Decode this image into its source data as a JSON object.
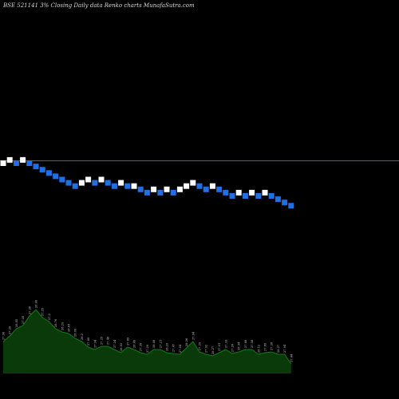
{
  "chart_data": {
    "type": "renko",
    "title": "BSE 521141 3% Closing Daily data Renko charts MunafaSutra.com",
    "brick_size_pct": 3,
    "brick_colors": {
      "up": "#ffffff",
      "down": "#1f6fe5"
    },
    "line_color": "#8a5a12",
    "volume_color": "#137c13",
    "reference_levels": [
      0,
      49.6
    ],
    "bricks": [
      {
        "level": 0,
        "dir": "up"
      },
      {
        "level": 1,
        "dir": "up"
      },
      {
        "level": 0,
        "dir": "down"
      },
      {
        "level": 1,
        "dir": "up"
      },
      {
        "level": 0,
        "dir": "down"
      },
      {
        "level": -1,
        "dir": "down"
      },
      {
        "level": -2,
        "dir": "down"
      },
      {
        "level": -3,
        "dir": "down"
      },
      {
        "level": -4,
        "dir": "down"
      },
      {
        "level": -5,
        "dir": "down"
      },
      {
        "level": -6,
        "dir": "down"
      },
      {
        "level": -7,
        "dir": "down"
      },
      {
        "level": -6,
        "dir": "up"
      },
      {
        "level": -5,
        "dir": "up"
      },
      {
        "level": -6,
        "dir": "down"
      },
      {
        "level": -5,
        "dir": "up"
      },
      {
        "level": -6,
        "dir": "down"
      },
      {
        "level": -7,
        "dir": "down"
      },
      {
        "level": -6,
        "dir": "up"
      },
      {
        "level": -7,
        "dir": "down"
      },
      {
        "level": -7,
        "dir": "up"
      },
      {
        "level": -8,
        "dir": "down"
      },
      {
        "level": -9,
        "dir": "down"
      },
      {
        "level": -8,
        "dir": "up"
      },
      {
        "level": -9,
        "dir": "down"
      },
      {
        "level": -8,
        "dir": "up"
      },
      {
        "level": -9,
        "dir": "down"
      },
      {
        "level": -8,
        "dir": "up"
      },
      {
        "level": -7,
        "dir": "up"
      },
      {
        "level": -6,
        "dir": "up"
      },
      {
        "level": -7,
        "dir": "down"
      },
      {
        "level": -8,
        "dir": "down"
      },
      {
        "level": -7,
        "dir": "up"
      },
      {
        "level": -8,
        "dir": "down"
      },
      {
        "level": -9,
        "dir": "down"
      },
      {
        "level": -10,
        "dir": "down"
      },
      {
        "level": -9,
        "dir": "up"
      },
      {
        "level": -10,
        "dir": "down"
      },
      {
        "level": -9,
        "dir": "up"
      },
      {
        "level": -10,
        "dir": "down"
      },
      {
        "level": -9,
        "dir": "up"
      },
      {
        "level": -10,
        "dir": "down"
      },
      {
        "level": -11,
        "dir": "down"
      },
      {
        "level": -12,
        "dir": "down"
      },
      {
        "level": -13,
        "dir": "down"
      }
    ],
    "volume": [
      40,
      47,
      56,
      60,
      72,
      80,
      70,
      65,
      56,
      52,
      50,
      44,
      40,
      33,
      30,
      34,
      34,
      30,
      26,
      33,
      30,
      26,
      24,
      30,
      30,
      26,
      25,
      24,
      32,
      40,
      27,
      24,
      22,
      26,
      30,
      25,
      27,
      30,
      30,
      24,
      26,
      27,
      24,
      24,
      12
    ],
    "volume_labels": [
      "27.36",
      "27.26",
      "28.05",
      "27.35",
      "27.28",
      "28.06",
      "27.25",
      "27.2",
      "28.76",
      "28.29",
      "28.83",
      "28.09",
      "28.2",
      "27.89",
      "27.34",
      "27.25",
      "27.46",
      "27.24",
      "28.02",
      "27.89",
      "28.49",
      "27.39",
      "27.29",
      "28.08",
      "27.21",
      "28.29",
      "27.47",
      "27.54",
      "28.26",
      "27.94",
      "27.25",
      "27.92",
      "28.27",
      "27.91",
      "27.33",
      "27.26",
      "28.34",
      "27.88",
      "27.58",
      "28.12",
      "27.89",
      "27.26",
      "28.27",
      "27.94",
      "27.44"
    ]
  }
}
